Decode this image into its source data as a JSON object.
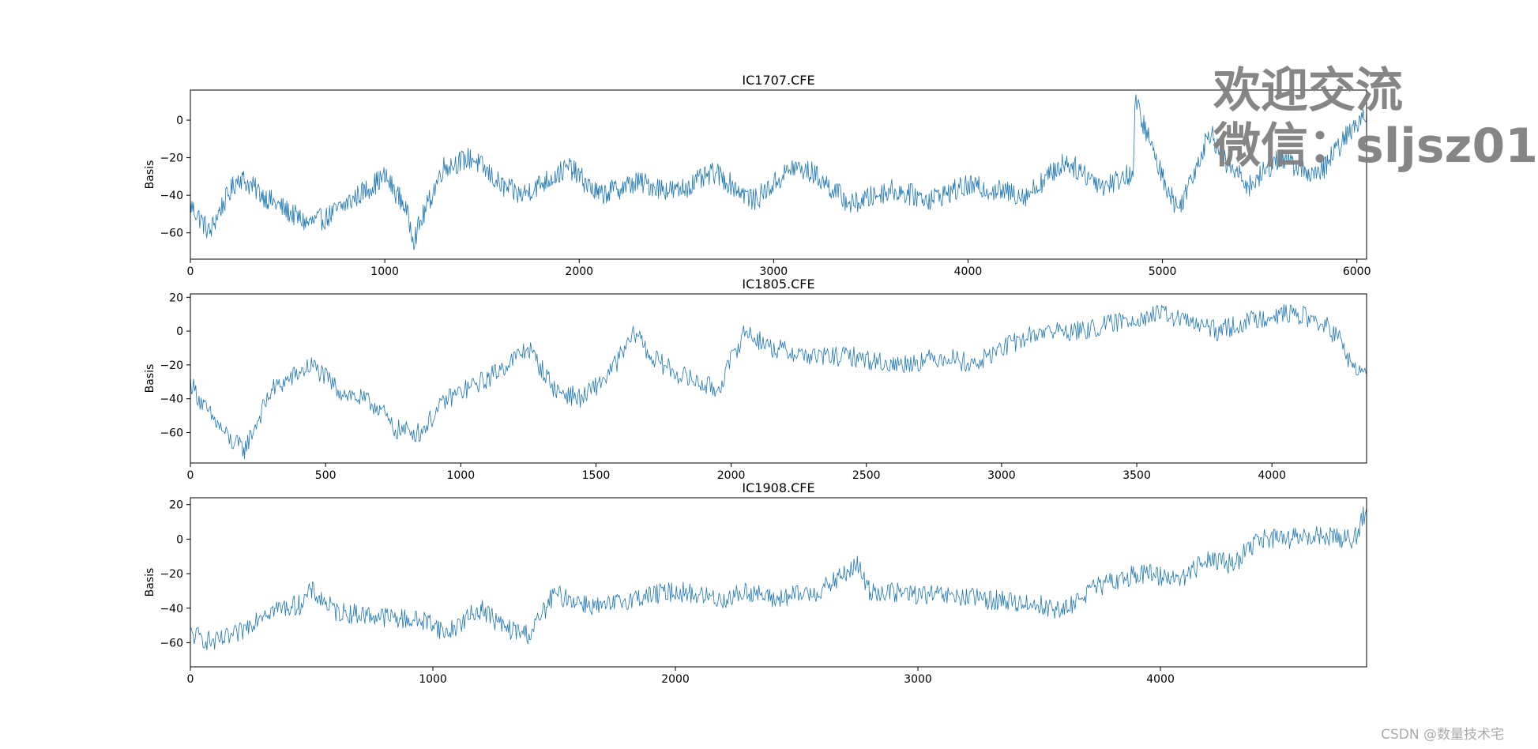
{
  "page": {
    "watermark_line1": "欢迎交流",
    "watermark_line2": "微信：sljsz01",
    "credit": "CSDN @数量技术宅"
  },
  "colors": {
    "series": "#1f77b4",
    "axes": "#000000",
    "watermark": "#808080"
  },
  "chart_data": [
    {
      "type": "line",
      "title": "IC1707.CFE",
      "xlabel": "",
      "ylabel": "Basis",
      "xlim": [
        0,
        6050
      ],
      "ylim": [
        -74,
        16
      ],
      "xticks": [
        0,
        1000,
        2000,
        3000,
        4000,
        5000,
        6000
      ],
      "yticks": [
        0,
        -20,
        -40,
        -60
      ],
      "grid": false,
      "series": [
        {
          "name": "IC1707.CFE",
          "x": [
            0,
            100,
            150,
            250,
            400,
            600,
            700,
            1000,
            1100,
            1150,
            1300,
            1450,
            1600,
            1700,
            1950,
            2100,
            2300,
            2500,
            2700,
            2900,
            3100,
            3200,
            3400,
            3600,
            3800,
            4000,
            4300,
            4500,
            4700,
            4850,
            4860,
            5000,
            5080,
            5250,
            5300,
            5450,
            5600,
            5800,
            5900,
            6050
          ],
          "values": [
            -45,
            -60,
            -48,
            -30,
            -42,
            -55,
            -52,
            -30,
            -45,
            -63,
            -25,
            -20,
            -35,
            -40,
            -25,
            -40,
            -33,
            -38,
            -28,
            -43,
            -25,
            -28,
            -45,
            -37,
            -42,
            -35,
            -40,
            -22,
            -35,
            -28,
            10,
            -30,
            -48,
            -5,
            -20,
            -35,
            -20,
            -30,
            -15,
            5
          ]
        }
      ]
    },
    {
      "type": "line",
      "title": "IC1805.CFE",
      "xlabel": "",
      "ylabel": "Basis",
      "xlim": [
        0,
        4350
      ],
      "ylim": [
        -78,
        22
      ],
      "xticks": [
        0,
        500,
        1000,
        1500,
        2000,
        2500,
        3000,
        3500,
        4000
      ],
      "yticks": [
        20,
        0,
        -20,
        -40,
        -60
      ],
      "grid": false,
      "series": [
        {
          "name": "IC1805.CFE",
          "x": [
            0,
            50,
            100,
            150,
            200,
            300,
            450,
            550,
            700,
            750,
            850,
            950,
            1100,
            1250,
            1350,
            1450,
            1550,
            1650,
            1700,
            1800,
            1950,
            2050,
            2150,
            2300,
            2450,
            2600,
            2800,
            2900,
            3000,
            3150,
            3300,
            3500,
            3600,
            3800,
            3900,
            4000,
            4100,
            4200,
            4250,
            4300,
            4350
          ],
          "values": [
            -30,
            -45,
            -55,
            -65,
            -70,
            -35,
            -20,
            -35,
            -45,
            -58,
            -60,
            -40,
            -28,
            -10,
            -35,
            -40,
            -25,
            0,
            -15,
            -25,
            -35,
            0,
            -10,
            -15,
            -15,
            -20,
            -15,
            -20,
            -10,
            0,
            0,
            8,
            10,
            0,
            5,
            10,
            10,
            3,
            -5,
            -22,
            -25
          ]
        }
      ]
    },
    {
      "type": "line",
      "title": "IC1908.CFE",
      "xlabel": "",
      "ylabel": "Basis",
      "xlim": [
        0,
        4850
      ],
      "ylim": [
        -74,
        24
      ],
      "xticks": [
        0,
        1000,
        2000,
        3000,
        4000
      ],
      "yticks": [
        20,
        0,
        -20,
        -40,
        -60
      ],
      "grid": false,
      "series": [
        {
          "name": "IC1908.CFE",
          "x": [
            0,
            100,
            200,
            300,
            450,
            500,
            600,
            800,
            1000,
            1050,
            1200,
            1300,
            1400,
            1500,
            1700,
            1800,
            2000,
            2200,
            2300,
            2400,
            2600,
            2750,
            2800,
            3000,
            3300,
            3500,
            3600,
            3700,
            3800,
            3900,
            4100,
            4200,
            4300,
            4400,
            4500,
            4700,
            4800,
            4850
          ],
          "values": [
            -55,
            -60,
            -55,
            -42,
            -38,
            -30,
            -42,
            -45,
            -48,
            -55,
            -40,
            -52,
            -55,
            -32,
            -40,
            -35,
            -30,
            -35,
            -30,
            -35,
            -30,
            -15,
            -30,
            -32,
            -35,
            -38,
            -42,
            -30,
            -25,
            -20,
            -22,
            -10,
            -15,
            0,
            0,
            2,
            0,
            18
          ]
        }
      ]
    }
  ]
}
